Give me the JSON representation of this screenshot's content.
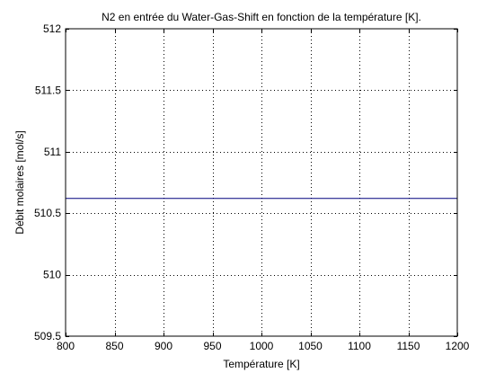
{
  "chart_data": {
    "type": "line",
    "title": "N2 en entrée du Water-Gas-Shift en fonction de la température [K].",
    "xlabel": "Température [K]",
    "ylabel": "Débit molaires [mol/s]",
    "xlim": [
      800,
      1200
    ],
    "ylim": [
      509.5,
      512
    ],
    "xticks": [
      800,
      850,
      900,
      950,
      1000,
      1050,
      1100,
      1150,
      1200
    ],
    "xtick_labels": [
      "800",
      "850",
      "900",
      "950",
      "1000",
      "1050",
      "1100",
      "1150",
      "1200"
    ],
    "yticks": [
      509.5,
      510,
      510.5,
      511,
      511.5,
      512
    ],
    "ytick_labels": [
      "509.5",
      "510",
      "510.5",
      "511",
      "511.5",
      "512"
    ],
    "grid": true,
    "series": [
      {
        "color": "#00007f",
        "x": [
          800,
          1200
        ],
        "y": [
          510.62,
          510.62
        ]
      }
    ]
  }
}
